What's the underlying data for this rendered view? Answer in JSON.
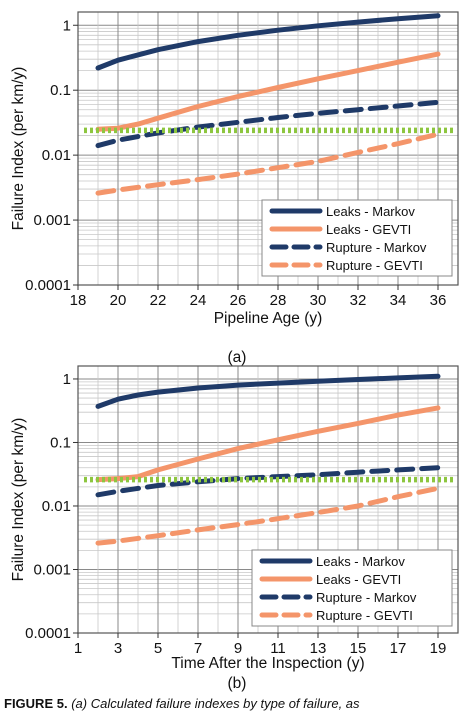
{
  "caption": {
    "label": "FIGURE 5.",
    "text": "(a) Calculated failure indexes by type of failure, as"
  },
  "chart_data": [
    {
      "type": "line",
      "panel_label": "(a)",
      "xlabel": "Pipeline Age (y)",
      "ylabel": "Failure Index (per km/y)",
      "yscale": "log",
      "xlim": [
        18,
        37
      ],
      "ylim": [
        0.0001,
        1.6
      ],
      "xticks": [
        18,
        20,
        22,
        24,
        26,
        28,
        30,
        32,
        34,
        36
      ],
      "yticks": [
        {
          "value": 0.0001,
          "label": "0.0001"
        },
        {
          "value": 0.001,
          "label": "0.001"
        },
        {
          "value": 0.01,
          "label": "0.01"
        },
        {
          "value": 0.1,
          "label": "0.1"
        },
        {
          "value": 1,
          "label": "1"
        }
      ],
      "grid": true,
      "legend_position": "lower-right",
      "series": [
        {
          "name": "Leaks - Markov",
          "color": "#1f3a68",
          "dash": "solid",
          "x": [
            19,
            20,
            22,
            24,
            26,
            28,
            30,
            32,
            34,
            36
          ],
          "y": [
            0.22,
            0.29,
            0.42,
            0.56,
            0.7,
            0.84,
            0.98,
            1.12,
            1.26,
            1.4
          ]
        },
        {
          "name": "Leaks - GEVTI",
          "color": "#f4956a",
          "dash": "solid",
          "x": [
            19,
            20,
            21,
            22,
            24,
            26,
            28,
            30,
            32,
            34,
            36
          ],
          "y": [
            0.025,
            0.026,
            0.03,
            0.037,
            0.056,
            0.08,
            0.11,
            0.15,
            0.2,
            0.27,
            0.36
          ]
        },
        {
          "name": "Rupture - Markov",
          "color": "#1f3a68",
          "dash": "dashed",
          "x": [
            19,
            20,
            22,
            24,
            26,
            28,
            30,
            32,
            34,
            36
          ],
          "y": [
            0.014,
            0.017,
            0.022,
            0.027,
            0.032,
            0.038,
            0.044,
            0.05,
            0.057,
            0.065
          ]
        },
        {
          "name": "Rupture - GEVTI",
          "color": "#f4956a",
          "dash": "dashed",
          "x": [
            19,
            20,
            22,
            24,
            26,
            28,
            30,
            32,
            34,
            36
          ],
          "y": [
            0.0026,
            0.0029,
            0.0035,
            0.0042,
            0.0051,
            0.0064,
            0.008,
            0.011,
            0.015,
            0.021
          ]
        },
        {
          "color": "#8dc63f",
          "dash": "dotted",
          "x": [
            18.3,
            36.8
          ],
          "y": [
            0.024,
            0.024
          ]
        }
      ]
    },
    {
      "type": "line",
      "panel_label": "(b)",
      "xlabel": "Time After the Inspection (y)",
      "ylabel": "Failure Index (per km/y)",
      "yscale": "log",
      "xlim": [
        1,
        20
      ],
      "ylim": [
        0.0001,
        1.6
      ],
      "xticks": [
        1,
        3,
        5,
        7,
        9,
        11,
        13,
        15,
        17,
        19
      ],
      "yticks": [
        {
          "value": 0.0001,
          "label": "0.0001"
        },
        {
          "value": 0.001,
          "label": "0.001"
        },
        {
          "value": 0.01,
          "label": "0.01"
        },
        {
          "value": 0.1,
          "label": "0.1"
        },
        {
          "value": 1,
          "label": "1"
        }
      ],
      "grid": true,
      "legend_position": "lower-right",
      "series": [
        {
          "name": "Leaks - Markov",
          "color": "#1f3a68",
          "dash": "solid",
          "x": [
            2,
            3,
            4,
            5,
            7,
            9,
            11,
            13,
            15,
            17,
            19
          ],
          "y": [
            0.37,
            0.48,
            0.56,
            0.62,
            0.72,
            0.8,
            0.86,
            0.92,
            0.98,
            1.04,
            1.1
          ]
        },
        {
          "name": "Leaks - GEVTI",
          "color": "#f4956a",
          "dash": "solid",
          "x": [
            2,
            3,
            4,
            5,
            7,
            9,
            11,
            13,
            15,
            17,
            19
          ],
          "y": [
            0.026,
            0.027,
            0.029,
            0.037,
            0.055,
            0.08,
            0.11,
            0.15,
            0.2,
            0.27,
            0.35
          ]
        },
        {
          "name": "Rupture - Markov",
          "color": "#1f3a68",
          "dash": "dashed",
          "x": [
            2,
            3,
            5,
            7,
            9,
            11,
            13,
            15,
            17,
            19
          ],
          "y": [
            0.015,
            0.017,
            0.021,
            0.024,
            0.027,
            0.029,
            0.031,
            0.034,
            0.037,
            0.04
          ]
        },
        {
          "name": "Rupture - GEVTI",
          "color": "#f4956a",
          "dash": "dashed",
          "x": [
            2,
            3,
            5,
            7,
            9,
            11,
            13,
            15,
            17,
            19
          ],
          "y": [
            0.0026,
            0.0028,
            0.0034,
            0.0042,
            0.0051,
            0.0063,
            0.0079,
            0.01,
            0.014,
            0.019
          ]
        },
        {
          "color": "#8dc63f",
          "dash": "dotted",
          "x": [
            1.3,
            19.8
          ],
          "y": [
            0.026,
            0.026
          ]
        }
      ]
    }
  ]
}
